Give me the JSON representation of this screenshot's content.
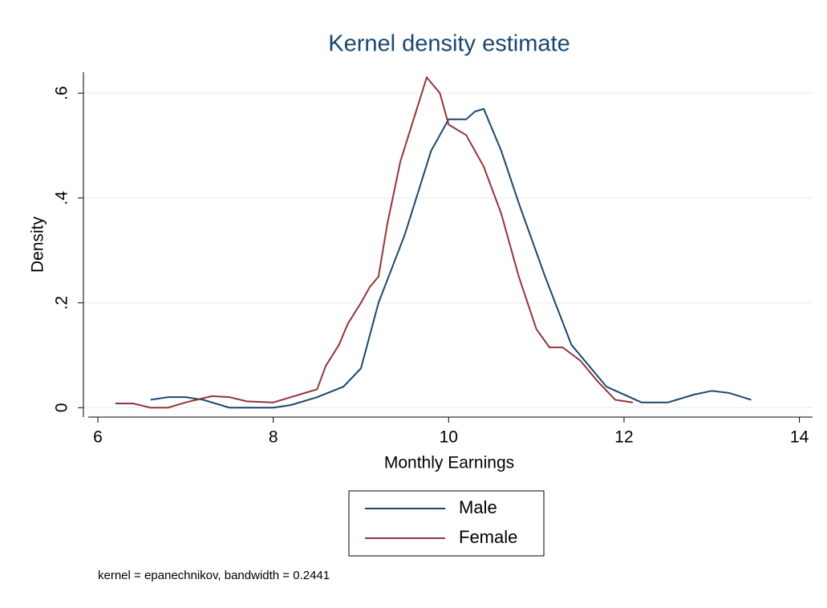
{
  "chart_data": {
    "type": "line",
    "title": "Kernel density estimate",
    "xlabel": "Monthly Earnings",
    "ylabel": "Density",
    "note": "kernel = epanechnikov, bandwidth = 0.2441",
    "xlim": [
      5.89,
      14.15
    ],
    "xticks": [
      6,
      8,
      10,
      12,
      14
    ],
    "ylim": [
      -0.018,
      0.64
    ],
    "yticks": [
      0,
      {
        "value": 0.2,
        "label": ".2"
      },
      {
        "value": 0.4,
        "label": ".4"
      },
      {
        "value": 0.6,
        "label": ".6"
      }
    ],
    "grid": true,
    "legend": "bottom",
    "series": [
      {
        "name": "Male",
        "color": "#1a476f",
        "x": [
          6.6,
          6.8,
          7.0,
          7.2,
          7.5,
          8.0,
          8.2,
          8.5,
          8.8,
          9.0,
          9.2,
          9.5,
          9.8,
          10.0,
          10.2,
          10.3,
          10.4,
          10.6,
          10.8,
          11.1,
          11.4,
          11.8,
          12.2,
          12.5,
          12.8,
          13.0,
          13.2,
          13.45
        ],
        "values": [
          0.015,
          0.02,
          0.02,
          0.015,
          0.0,
          0.0,
          0.005,
          0.02,
          0.04,
          0.075,
          0.2,
          0.33,
          0.49,
          0.55,
          0.55,
          0.565,
          0.57,
          0.49,
          0.39,
          0.25,
          0.12,
          0.04,
          0.01,
          0.01,
          0.025,
          0.032,
          0.028,
          0.015
        ]
      },
      {
        "name": "Female",
        "color": "#90353b",
        "x": [
          6.2,
          6.4,
          6.6,
          6.8,
          7.0,
          7.3,
          7.5,
          7.7,
          8.0,
          8.2,
          8.4,
          8.5,
          8.6,
          8.75,
          8.85,
          9.0,
          9.1,
          9.2,
          9.3,
          9.45,
          9.6,
          9.75,
          9.9,
          10.0,
          10.2,
          10.4,
          10.6,
          10.8,
          11.0,
          11.15,
          11.3,
          11.5,
          11.7,
          11.9,
          12.1
        ],
        "values": [
          0.008,
          0.008,
          0.0,
          0.0,
          0.01,
          0.022,
          0.02,
          0.012,
          0.01,
          0.02,
          0.03,
          0.035,
          0.08,
          0.12,
          0.16,
          0.2,
          0.23,
          0.25,
          0.35,
          0.47,
          0.55,
          0.63,
          0.6,
          0.54,
          0.52,
          0.46,
          0.37,
          0.25,
          0.15,
          0.115,
          0.115,
          0.09,
          0.05,
          0.015,
          0.01
        ]
      }
    ]
  }
}
